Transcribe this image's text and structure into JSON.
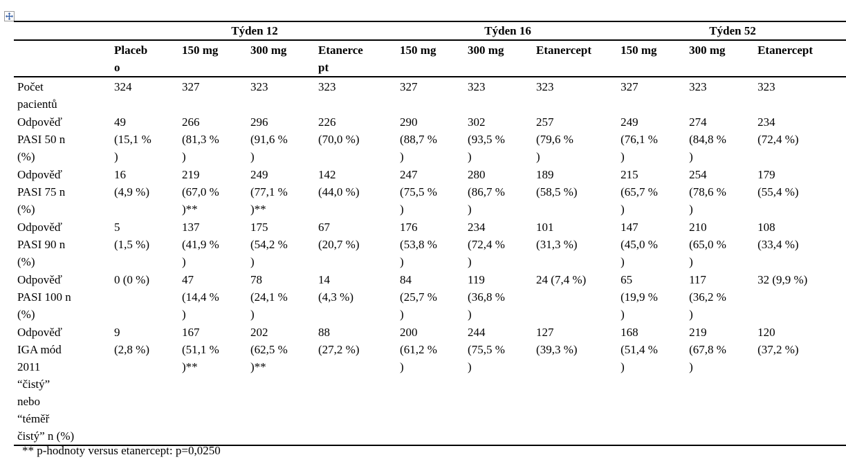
{
  "table": {
    "group_headers": [
      {
        "label": "",
        "colspan": 1
      },
      {
        "label": "Týden 12",
        "colspan": 4
      },
      {
        "label": "Týden 16",
        "colspan": 3
      },
      {
        "label": "Týden 52",
        "colspan": 3
      }
    ],
    "column_headers": [
      "",
      "Placeb\no",
      "150 mg",
      "300 mg",
      "Etanerce\npt",
      "150 mg",
      "300 mg",
      "Etanercept",
      "150 mg",
      "300 mg",
      "Etanercept"
    ],
    "rows": [
      {
        "label": "Počet\npacientů",
        "cells": [
          "324",
          "327",
          "323",
          "323",
          "327",
          "323",
          "323",
          "327",
          "323",
          "323"
        ]
      },
      {
        "label": "Odpověď\nPASI 50 n\n(%)",
        "cells": [
          "49\n(15,1 %\n)",
          "266\n(81,3 %\n)",
          "296\n(91,6 %\n)",
          "226\n(70,0 %)",
          "290\n(88,7 %\n)",
          "302\n(93,5 %\n)",
          "257\n(79,6 %\n)",
          "249\n(76,1 %\n)",
          "274\n(84,8 %\n)",
          "234\n(72,4 %)"
        ]
      },
      {
        "label": "Odpověď\nPASI 75 n\n(%)",
        "cells": [
          "16\n(4,9 %)",
          "219\n(67,0 %\n)**",
          "249\n(77,1 %\n)**",
          "142\n(44,0 %)",
          "247\n(75,5 %\n)",
          "280\n(86,7 %\n)",
          "189\n(58,5 %)",
          "215\n(65,7 %\n)",
          "254\n(78,6 %\n)",
          "179\n(55,4 %)"
        ]
      },
      {
        "label": "Odpověď\nPASI 90 n\n(%)",
        "cells": [
          "5\n(1,5 %)",
          "137\n(41,9 %\n)",
          "175\n(54,2 %\n)",
          "67\n(20,7 %)",
          "176\n(53,8 %\n)",
          "234\n(72,4 %\n)",
          "101\n(31,3 %)",
          "147\n(45,0 %\n)",
          "210\n(65,0 %\n)",
          "108\n(33,4 %)"
        ]
      },
      {
        "label": "Odpověď\nPASI 100 n\n(%)",
        "cells": [
          "0 (0 %)",
          "47\n(14,4 %\n)",
          "78\n(24,1 %\n)",
          "14\n(4,3 %)",
          "84\n(25,7 %\n)",
          "119\n(36,8 %\n)",
          "24 (7,4 %)",
          "65\n(19,9 %\n)",
          "117\n(36,2 %\n)",
          "32 (9,9 %)"
        ]
      },
      {
        "label": "Odpověď\nIGA mód\n2011\n“čistý”\nnebo\n“téměř\nčistý” n (%)",
        "cells": [
          "9\n(2,8 %)",
          "167\n(51,1 %\n)**",
          "202\n(62,5 %\n)**",
          "88\n(27,2 %)",
          "200\n(61,2 %\n)",
          "244\n(75,5 %\n)",
          "127\n(39,3 %)",
          "168\n(51,4 %\n)",
          "219\n(67,8 %\n)",
          "120\n(37,2 %)"
        ]
      }
    ],
    "footnote": "** p-hodnoty versus etanercept: p=0,0250"
  },
  "icons": {
    "move_handle": "table-move-handle",
    "handle_color": "#3a63a8"
  }
}
